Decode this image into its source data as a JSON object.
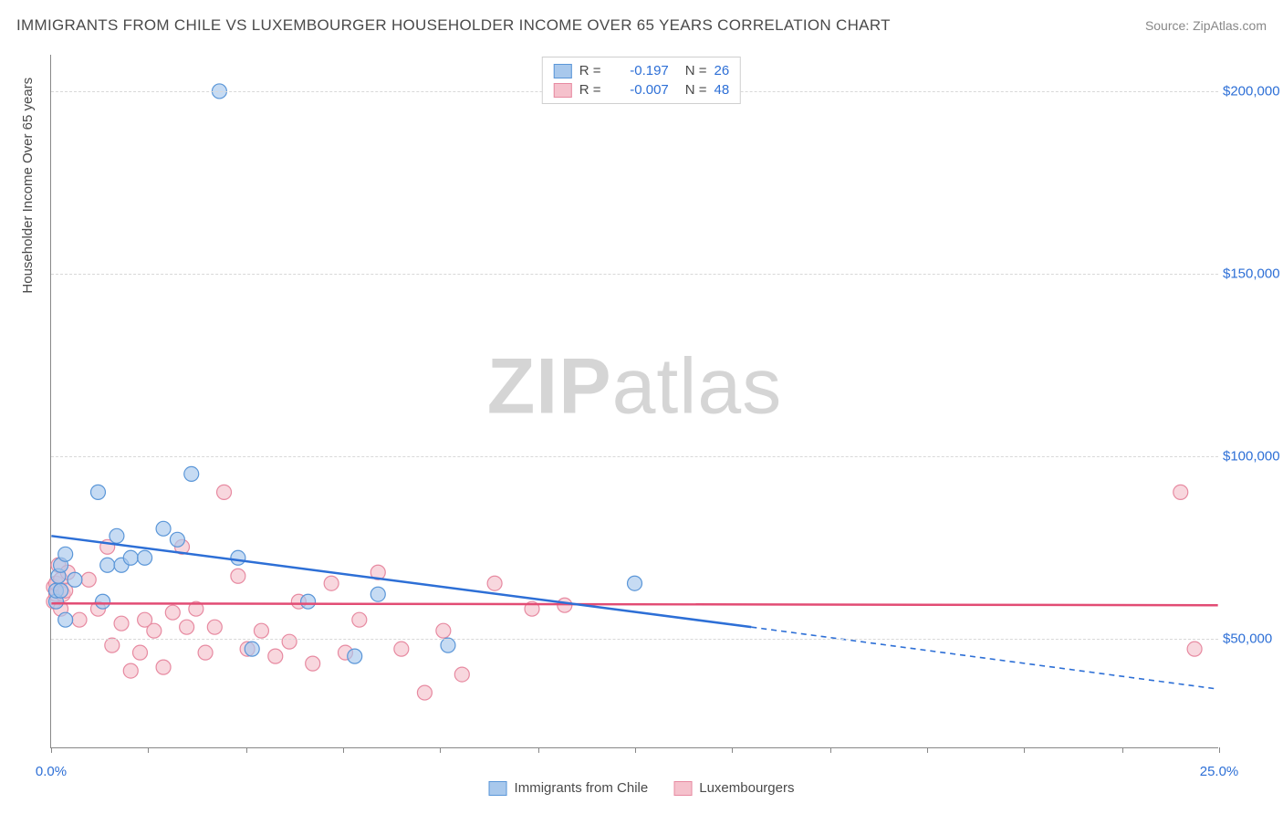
{
  "title": "IMMIGRANTS FROM CHILE VS LUXEMBOURGER HOUSEHOLDER INCOME OVER 65 YEARS CORRELATION CHART",
  "source": "Source: ZipAtlas.com",
  "y_axis_label": "Householder Income Over 65 years",
  "watermark_bold": "ZIP",
  "watermark_rest": "atlas",
  "chart": {
    "type": "scatter",
    "xlim": [
      0,
      25
    ],
    "ylim": [
      20000,
      210000
    ],
    "x_ticks": [
      0,
      2.08,
      4.17,
      6.25,
      8.33,
      10.42,
      12.5,
      14.58,
      16.67,
      18.75,
      20.83,
      22.92,
      25
    ],
    "x_tick_labels": {
      "0": "0.0%",
      "25": "25.0%"
    },
    "y_gridlines": [
      50000,
      100000,
      150000,
      200000
    ],
    "y_tick_labels": {
      "50000": "$50,000",
      "100000": "$100,000",
      "150000": "$150,000",
      "200000": "$200,000"
    },
    "background_color": "#ffffff",
    "grid_color": "#d8d8d8",
    "axis_color": "#888888",
    "label_color": "#2d6fd6",
    "point_radius": 8,
    "point_opacity": 0.65
  },
  "series": [
    {
      "name": "Immigrants from Chile",
      "label": "Immigrants from Chile",
      "fill": "#a8c8ec",
      "stroke": "#5a96d8",
      "line_color": "#2d6fd6",
      "r_value": "-0.197",
      "n_value": "26",
      "trend": {
        "x1": 0,
        "y1": 78000,
        "x2": 15,
        "y2": 53000,
        "extrap_x2": 25,
        "extrap_y2": 36000
      },
      "points": [
        [
          0.1,
          60000
        ],
        [
          0.1,
          63000
        ],
        [
          0.15,
          67000
        ],
        [
          0.2,
          63000
        ],
        [
          0.2,
          70000
        ],
        [
          0.3,
          55000
        ],
        [
          0.3,
          73000
        ],
        [
          0.5,
          66000
        ],
        [
          1.0,
          90000
        ],
        [
          1.1,
          60000
        ],
        [
          1.2,
          70000
        ],
        [
          1.4,
          78000
        ],
        [
          1.5,
          70000
        ],
        [
          1.7,
          72000
        ],
        [
          2.0,
          72000
        ],
        [
          2.4,
          80000
        ],
        [
          2.7,
          77000
        ],
        [
          3.0,
          95000
        ],
        [
          3.6,
          200000
        ],
        [
          4.0,
          72000
        ],
        [
          4.3,
          47000
        ],
        [
          5.5,
          60000
        ],
        [
          6.5,
          45000
        ],
        [
          7.0,
          62000
        ],
        [
          8.5,
          48000
        ],
        [
          12.5,
          65000
        ]
      ]
    },
    {
      "name": "Luxembourgers",
      "label": "Luxembourgers",
      "fill": "#f5c1cc",
      "stroke": "#e78aa1",
      "line_color": "#e24c74",
      "r_value": "-0.007",
      "n_value": "48",
      "trend": {
        "x1": 0,
        "y1": 59500,
        "x2": 25,
        "y2": 59000
      },
      "points": [
        [
          0.05,
          60000
        ],
        [
          0.05,
          64000
        ],
        [
          0.1,
          62000
        ],
        [
          0.1,
          65000
        ],
        [
          0.15,
          70000
        ],
        [
          0.2,
          66000
        ],
        [
          0.2,
          58000
        ],
        [
          0.25,
          62000
        ],
        [
          0.3,
          63000
        ],
        [
          0.35,
          68000
        ],
        [
          0.6,
          55000
        ],
        [
          0.8,
          66000
        ],
        [
          1.0,
          58000
        ],
        [
          1.2,
          75000
        ],
        [
          1.3,
          48000
        ],
        [
          1.5,
          54000
        ],
        [
          1.7,
          41000
        ],
        [
          1.9,
          46000
        ],
        [
          2.0,
          55000
        ],
        [
          2.2,
          52000
        ],
        [
          2.4,
          42000
        ],
        [
          2.6,
          57000
        ],
        [
          2.8,
          75000
        ],
        [
          2.9,
          53000
        ],
        [
          3.1,
          58000
        ],
        [
          3.3,
          46000
        ],
        [
          3.5,
          53000
        ],
        [
          3.7,
          90000
        ],
        [
          4.0,
          67000
        ],
        [
          4.2,
          47000
        ],
        [
          4.5,
          52000
        ],
        [
          4.8,
          45000
        ],
        [
          5.1,
          49000
        ],
        [
          5.3,
          60000
        ],
        [
          5.6,
          43000
        ],
        [
          6.0,
          65000
        ],
        [
          6.3,
          46000
        ],
        [
          6.6,
          55000
        ],
        [
          7.0,
          68000
        ],
        [
          7.5,
          47000
        ],
        [
          8.0,
          35000
        ],
        [
          8.4,
          52000
        ],
        [
          8.8,
          40000
        ],
        [
          9.5,
          65000
        ],
        [
          10.3,
          58000
        ],
        [
          11.0,
          59000
        ],
        [
          24.2,
          90000
        ],
        [
          24.5,
          47000
        ]
      ]
    }
  ],
  "legend_top": {
    "r_label": "R =",
    "n_label": "N ="
  }
}
